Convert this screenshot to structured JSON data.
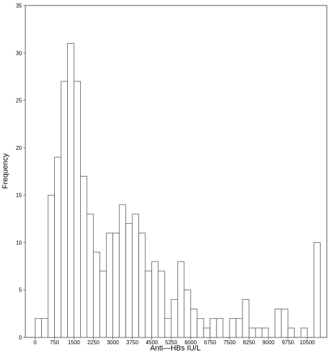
{
  "chart_data": {
    "type": "bar",
    "xlabel": "Anti—HBs  IU/L",
    "ylabel": "Frequency",
    "ylim": [
      0,
      35
    ],
    "xlim": [
      -375,
      11250
    ],
    "bin_width": 250,
    "bin_starts": [
      0,
      250,
      500,
      750,
      1000,
      1250,
      1500,
      1750,
      2000,
      2250,
      2500,
      2750,
      3000,
      3250,
      3500,
      3750,
      4000,
      4250,
      4500,
      4750,
      5000,
      5250,
      5500,
      5750,
      6000,
      6250,
      6500,
      6750,
      7000,
      7250,
      7500,
      7750,
      8000,
      8250,
      8500,
      8750,
      9000,
      9250,
      9500,
      9750,
      10000,
      10250,
      10500,
      10750
    ],
    "values": [
      2,
      2,
      15,
      19,
      27,
      31,
      27,
      17,
      13,
      9,
      7,
      11,
      11,
      14,
      12,
      13,
      11,
      7,
      8,
      7,
      2,
      4,
      8,
      5,
      3,
      2,
      1,
      2,
      2,
      0,
      2,
      2,
      4,
      1,
      1,
      1,
      0,
      3,
      3,
      1,
      0,
      1,
      0,
      10
    ],
    "x_ticks": [
      0,
      750,
      1500,
      2250,
      3000,
      3750,
      4500,
      5250,
      6000,
      6750,
      7500,
      8250,
      9000,
      9750,
      10500
    ],
    "y_ticks": [
      0,
      5,
      10,
      15,
      20,
      25,
      30,
      35
    ]
  }
}
